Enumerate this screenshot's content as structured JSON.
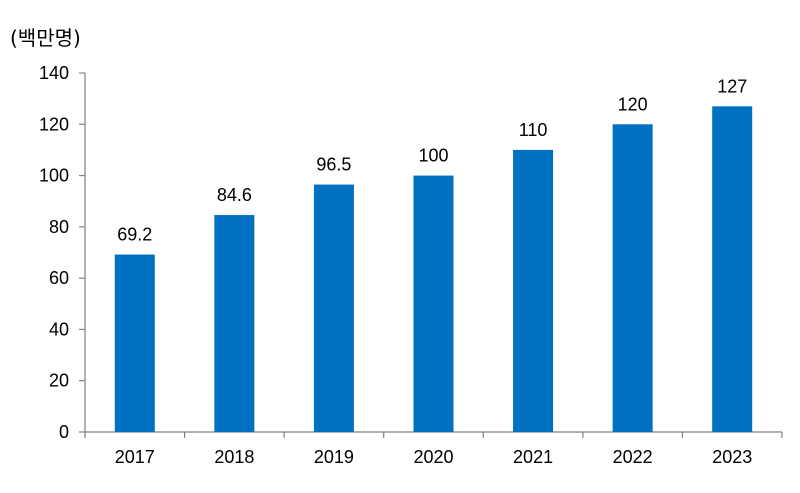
{
  "chart_data": {
    "type": "bar",
    "unit_label": "(백만명)",
    "title": "",
    "xlabel": "",
    "ylabel": "",
    "categories": [
      "2017",
      "2018",
      "2019",
      "2020",
      "2021",
      "2022",
      "2023"
    ],
    "values": [
      69.2,
      84.6,
      96.5,
      100,
      110,
      120,
      127
    ],
    "data_labels": [
      "69.2",
      "84.6",
      "96.5",
      "100",
      "110",
      "120",
      "127"
    ],
    "ylim": [
      0,
      140
    ],
    "yticks": [
      0,
      20,
      40,
      60,
      80,
      100,
      120,
      140
    ],
    "grid": false,
    "legend": "none",
    "bar_color": "#0070C0",
    "axis_color": "#808080"
  }
}
